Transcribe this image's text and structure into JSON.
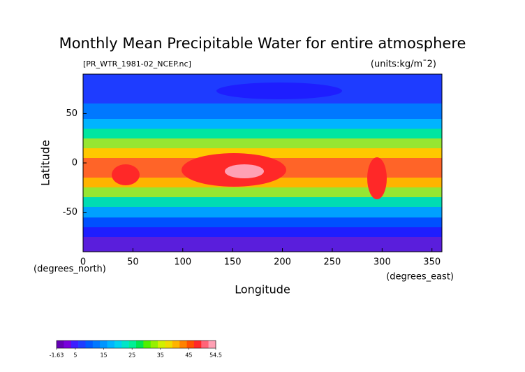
{
  "chart_data": {
    "type": "contour-map",
    "title": "Monthly Mean Precipitable Water for entire atmosphere",
    "subtitle": "[PR_WTR_1981-02_NCEP.nc]",
    "units": "(units:kg/m¯2)",
    "xlabel": "Longitude",
    "ylabel": "Latitude",
    "xunit": "(degrees_east)",
    "yunit": "(degrees_north)",
    "xlim": [
      0,
      360
    ],
    "ylim": [
      -90,
      90
    ],
    "xticks": [
      0,
      50,
      100,
      150,
      200,
      250,
      300,
      350
    ],
    "yticks": [
      -50,
      0,
      50
    ],
    "colorbar": {
      "lim": [
        -1.63,
        54.5
      ],
      "ticks": [
        -1.63,
        5,
        15,
        25,
        35,
        45,
        54.5
      ],
      "colors": [
        "#6400b4",
        "#7800dc",
        "#3c1eff",
        "#1e3cff",
        "#005aff",
        "#0078ff",
        "#0096ff",
        "#00b4ff",
        "#00d2f0",
        "#00e6c8",
        "#00f096",
        "#00e650",
        "#50f000",
        "#96f000",
        "#d2f000",
        "#f0dc00",
        "#ffb400",
        "#ff8200",
        "#ff5000",
        "#ff2828",
        "#ff6478",
        "#ffa0b4"
      ]
    }
  }
}
